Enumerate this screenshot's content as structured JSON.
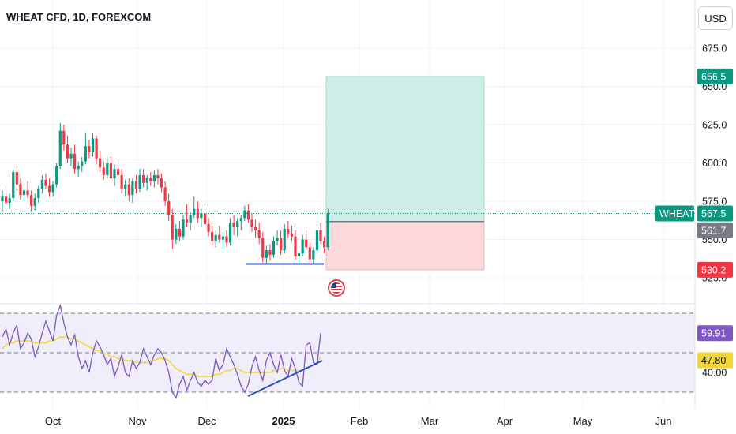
{
  "header": {
    "title": "WHEAT CFD, 1D, FOREXCOM",
    "currency_button": "USD"
  },
  "colors": {
    "up": "#089981",
    "down": "#f23645",
    "rsi_line": "#7e57c2",
    "rsi_ma": "#f2d52f",
    "trendline": "#2b4bc2",
    "target_zone": "#cdeee6",
    "stop_zone": "#fbd9dc"
  },
  "price_axis": {
    "ticks": [
      "675.0",
      "650.0",
      "625.0",
      "600.0",
      "575.0",
      "550.0",
      "525.0"
    ],
    "tick_values": [
      675,
      650,
      625,
      600,
      575,
      550,
      525
    ]
  },
  "price_labels": {
    "target": "656.5",
    "symbol": "WHEAT",
    "last_price": "567.5",
    "entry": "561.7",
    "stop": "530.2"
  },
  "rsi_axis": {
    "ticks": [
      "40.00"
    ],
    "rsi_label": "59.91",
    "ma_label": "47.80",
    "levels": [
      70,
      50,
      30
    ]
  },
  "time_axis": {
    "labels": [
      "Oct",
      "Nov",
      "Dec",
      "2025",
      "Feb",
      "Mar",
      "Apr",
      "May",
      "Jun"
    ]
  },
  "chart_data": {
    "type": "candlestick",
    "symbol": "WHEAT CFD",
    "interval": "1D",
    "ylim": [
      512,
      690
    ],
    "candles": [
      {
        "o": 575,
        "h": 582,
        "l": 568,
        "c": 578
      },
      {
        "o": 578,
        "h": 585,
        "l": 573,
        "c": 574
      },
      {
        "o": 574,
        "h": 580,
        "l": 570,
        "c": 577
      },
      {
        "o": 577,
        "h": 596,
        "l": 575,
        "c": 594
      },
      {
        "o": 594,
        "h": 598,
        "l": 582,
        "c": 586
      },
      {
        "o": 586,
        "h": 590,
        "l": 576,
        "c": 579
      },
      {
        "o": 579,
        "h": 584,
        "l": 575,
        "c": 582
      },
      {
        "o": 582,
        "h": 588,
        "l": 577,
        "c": 579
      },
      {
        "o": 579,
        "h": 582,
        "l": 568,
        "c": 572
      },
      {
        "o": 572,
        "h": 580,
        "l": 569,
        "c": 577
      },
      {
        "o": 577,
        "h": 585,
        "l": 574,
        "c": 583
      },
      {
        "o": 583,
        "h": 592,
        "l": 580,
        "c": 589
      },
      {
        "o": 589,
        "h": 593,
        "l": 583,
        "c": 585
      },
      {
        "o": 585,
        "h": 590,
        "l": 578,
        "c": 581
      },
      {
        "o": 581,
        "h": 588,
        "l": 578,
        "c": 586
      },
      {
        "o": 586,
        "h": 600,
        "l": 584,
        "c": 598
      },
      {
        "o": 598,
        "h": 626,
        "l": 596,
        "c": 621
      },
      {
        "o": 621,
        "h": 625,
        "l": 608,
        "c": 612
      },
      {
        "o": 612,
        "h": 618,
        "l": 600,
        "c": 603
      },
      {
        "o": 603,
        "h": 610,
        "l": 598,
        "c": 606
      },
      {
        "o": 606,
        "h": 612,
        "l": 593,
        "c": 596
      },
      {
        "o": 596,
        "h": 601,
        "l": 591,
        "c": 598
      },
      {
        "o": 598,
        "h": 604,
        "l": 594,
        "c": 601
      },
      {
        "o": 601,
        "h": 620,
        "l": 599,
        "c": 611
      },
      {
        "o": 611,
        "h": 615,
        "l": 603,
        "c": 607
      },
      {
        "o": 607,
        "h": 620,
        "l": 604,
        "c": 616
      },
      {
        "o": 616,
        "h": 618,
        "l": 599,
        "c": 603
      },
      {
        "o": 603,
        "h": 608,
        "l": 594,
        "c": 597
      },
      {
        "o": 597,
        "h": 601,
        "l": 589,
        "c": 592
      },
      {
        "o": 592,
        "h": 603,
        "l": 590,
        "c": 600
      },
      {
        "o": 600,
        "h": 604,
        "l": 588,
        "c": 590
      },
      {
        "o": 590,
        "h": 599,
        "l": 585,
        "c": 596
      },
      {
        "o": 596,
        "h": 603,
        "l": 589,
        "c": 592
      },
      {
        "o": 592,
        "h": 596,
        "l": 580,
        "c": 583
      },
      {
        "o": 583,
        "h": 589,
        "l": 578,
        "c": 586
      },
      {
        "o": 586,
        "h": 590,
        "l": 575,
        "c": 579
      },
      {
        "o": 579,
        "h": 590,
        "l": 574,
        "c": 588
      },
      {
        "o": 588,
        "h": 592,
        "l": 580,
        "c": 583
      },
      {
        "o": 583,
        "h": 596,
        "l": 581,
        "c": 592
      },
      {
        "o": 592,
        "h": 596,
        "l": 584,
        "c": 587
      },
      {
        "o": 587,
        "h": 592,
        "l": 582,
        "c": 590
      },
      {
        "o": 590,
        "h": 594,
        "l": 585,
        "c": 588
      },
      {
        "o": 588,
        "h": 595,
        "l": 584,
        "c": 592
      },
      {
        "o": 592,
        "h": 596,
        "l": 586,
        "c": 590
      },
      {
        "o": 590,
        "h": 593,
        "l": 581,
        "c": 584
      },
      {
        "o": 584,
        "h": 588,
        "l": 572,
        "c": 575
      },
      {
        "o": 575,
        "h": 580,
        "l": 562,
        "c": 566
      },
      {
        "o": 566,
        "h": 570,
        "l": 544,
        "c": 550
      },
      {
        "o": 550,
        "h": 560,
        "l": 547,
        "c": 557
      },
      {
        "o": 557,
        "h": 562,
        "l": 549,
        "c": 552
      },
      {
        "o": 552,
        "h": 566,
        "l": 550,
        "c": 563
      },
      {
        "o": 563,
        "h": 573,
        "l": 558,
        "c": 561
      },
      {
        "o": 561,
        "h": 568,
        "l": 556,
        "c": 566
      },
      {
        "o": 566,
        "h": 578,
        "l": 564,
        "c": 570
      },
      {
        "o": 570,
        "h": 575,
        "l": 561,
        "c": 564
      },
      {
        "o": 564,
        "h": 570,
        "l": 558,
        "c": 567
      },
      {
        "o": 567,
        "h": 571,
        "l": 558,
        "c": 560
      },
      {
        "o": 560,
        "h": 564,
        "l": 552,
        "c": 555
      },
      {
        "o": 555,
        "h": 559,
        "l": 546,
        "c": 549
      },
      {
        "o": 549,
        "h": 556,
        "l": 545,
        "c": 553
      },
      {
        "o": 553,
        "h": 559,
        "l": 548,
        "c": 550
      },
      {
        "o": 550,
        "h": 555,
        "l": 544,
        "c": 552
      },
      {
        "o": 552,
        "h": 556,
        "l": 545,
        "c": 548
      },
      {
        "o": 548,
        "h": 564,
        "l": 546,
        "c": 561
      },
      {
        "o": 561,
        "h": 566,
        "l": 553,
        "c": 558
      },
      {
        "o": 558,
        "h": 564,
        "l": 552,
        "c": 562
      },
      {
        "o": 562,
        "h": 566,
        "l": 556,
        "c": 564
      },
      {
        "o": 564,
        "h": 572,
        "l": 562,
        "c": 569
      },
      {
        "o": 569,
        "h": 573,
        "l": 561,
        "c": 563
      },
      {
        "o": 563,
        "h": 567,
        "l": 555,
        "c": 558
      },
      {
        "o": 558,
        "h": 563,
        "l": 551,
        "c": 556
      },
      {
        "o": 556,
        "h": 561,
        "l": 547,
        "c": 551
      },
      {
        "o": 551,
        "h": 555,
        "l": 535,
        "c": 538
      },
      {
        "o": 538,
        "h": 546,
        "l": 534,
        "c": 543
      },
      {
        "o": 543,
        "h": 547,
        "l": 536,
        "c": 540
      },
      {
        "o": 540,
        "h": 552,
        "l": 538,
        "c": 549
      },
      {
        "o": 549,
        "h": 556,
        "l": 546,
        "c": 551
      },
      {
        "o": 551,
        "h": 556,
        "l": 540,
        "c": 543
      },
      {
        "o": 543,
        "h": 560,
        "l": 541,
        "c": 557
      },
      {
        "o": 557,
        "h": 562,
        "l": 551,
        "c": 554
      },
      {
        "o": 554,
        "h": 559,
        "l": 549,
        "c": 552
      },
      {
        "o": 552,
        "h": 556,
        "l": 537,
        "c": 539
      },
      {
        "o": 539,
        "h": 543,
        "l": 535,
        "c": 541
      },
      {
        "o": 541,
        "h": 553,
        "l": 539,
        "c": 550
      },
      {
        "o": 550,
        "h": 556,
        "l": 543,
        "c": 545
      },
      {
        "o": 545,
        "h": 548,
        "l": 535,
        "c": 537
      },
      {
        "o": 537,
        "h": 545,
        "l": 534,
        "c": 543
      },
      {
        "o": 543,
        "h": 560,
        "l": 541,
        "c": 556
      },
      {
        "o": 556,
        "h": 561,
        "l": 547,
        "c": 549
      },
      {
        "o": 549,
        "h": 552,
        "l": 541,
        "c": 545
      },
      {
        "o": 545,
        "h": 570,
        "l": 543,
        "c": 567
      }
    ],
    "indicators": {
      "rsi": {
        "last": 59.91,
        "values": [
          58,
          62,
          54,
          60,
          64,
          52,
          55,
          60,
          57,
          48,
          53,
          60,
          66,
          61,
          56,
          69,
          74,
          65,
          58,
          54,
          59,
          48,
          42,
          46,
          40,
          50,
          56,
          53,
          49,
          44,
          47,
          38,
          43,
          49,
          40,
          38,
          46,
          42,
          45,
          52,
          48,
          44,
          49,
          52,
          50,
          46,
          40,
          30,
          27,
          34,
          38,
          31,
          36,
          40,
          35,
          33,
          36,
          34,
          36,
          47,
          41,
          44,
          52,
          48,
          44,
          39,
          33,
          30,
          34,
          43,
          48,
          41,
          36,
          46,
          50,
          44,
          40,
          49,
          41,
          38,
          47,
          42,
          35,
          33,
          54,
          55,
          45,
          44,
          60
        ]
      },
      "rsi_ma": {
        "last": 47.8,
        "values": [
          52,
          54,
          55,
          55,
          56,
          56,
          56,
          56,
          56,
          55,
          55,
          55,
          55,
          56,
          56,
          57,
          58,
          58,
          58,
          57,
          57,
          56,
          55,
          54,
          53,
          52,
          51,
          51,
          50,
          49,
          48,
          48,
          47,
          47,
          46,
          46,
          46,
          45,
          45,
          45,
          45,
          46,
          46,
          47,
          47,
          47,
          46,
          44,
          42,
          41,
          40,
          39,
          39,
          39,
          38,
          38,
          38,
          38,
          38,
          39,
          39,
          40,
          41,
          41,
          42,
          42,
          41,
          40,
          40,
          40,
          40,
          40,
          40,
          40,
          40,
          41,
          41,
          42,
          42,
          41,
          41,
          41,
          41,
          41,
          42,
          43,
          44,
          45,
          47.8
        ]
      }
    },
    "position": {
      "type": "long",
      "entry": 561.7,
      "target": 656.5,
      "stop": 530.2
    }
  }
}
